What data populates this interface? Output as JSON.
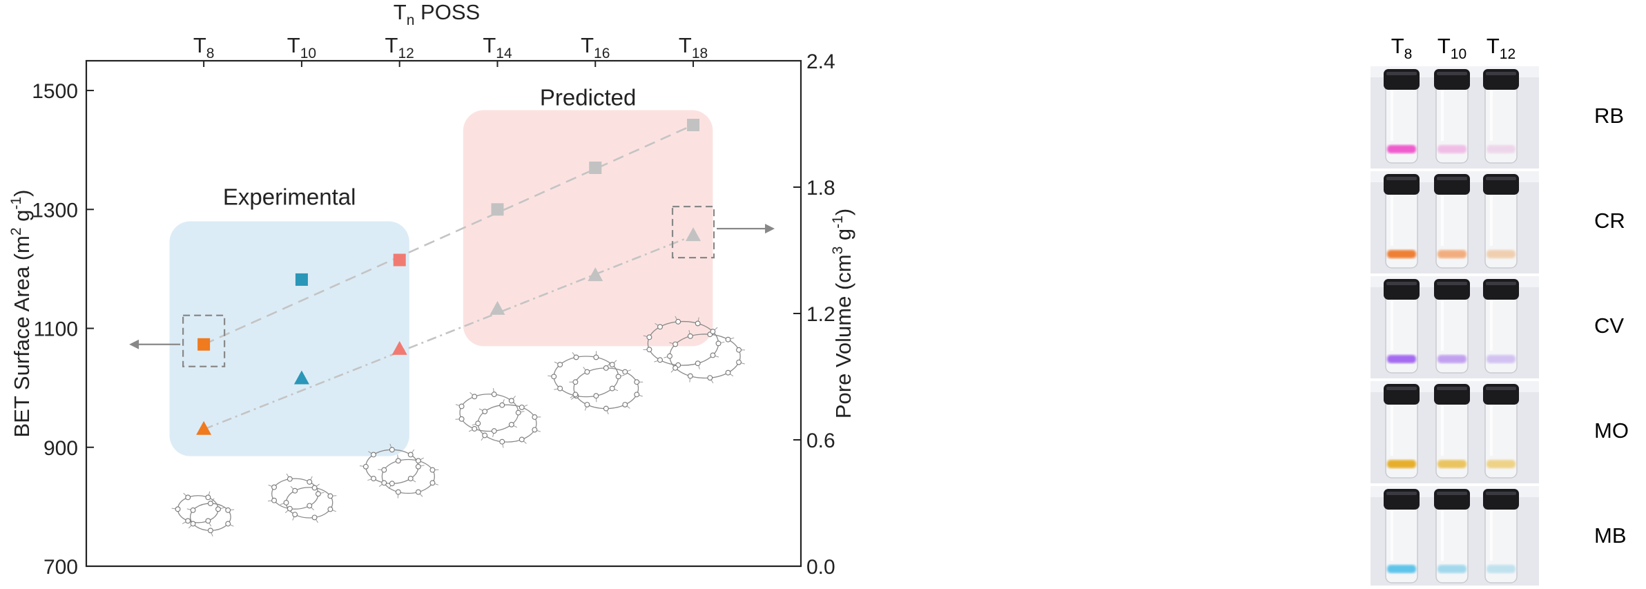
{
  "chart_data": {
    "type": "scatter",
    "top_axis": {
      "title_main": "T",
      "title_sub": "n",
      "title_rest": " POSS",
      "ticks": [
        {
          "main": "T",
          "sub": "8"
        },
        {
          "main": "T",
          "sub": "10"
        },
        {
          "main": "T",
          "sub": "12"
        },
        {
          "main": "T",
          "sub": "14"
        },
        {
          "main": "T",
          "sub": "16"
        },
        {
          "main": "T",
          "sub": "18"
        }
      ]
    },
    "x": [
      8,
      10,
      12,
      14,
      16,
      18
    ],
    "xlim": [
      5.6,
      20.2
    ],
    "left_axis": {
      "label": "BET Surface Area (m² g⁻¹)",
      "label_main": "BET Surface Area (m",
      "label_sup1": "2",
      "label_mid": " g",
      "label_sup2": "-1",
      "label_end": ")",
      "ylim": [
        700,
        1550
      ],
      "ticks": [
        "700",
        "900",
        "1100",
        "1300",
        "1500"
      ],
      "tick_values": [
        700,
        900,
        1100,
        1300,
        1500
      ]
    },
    "right_axis": {
      "label": "Pore Volume (cm³ g⁻¹)",
      "label_main": "Pore Volume (cm",
      "label_sup1": "3",
      "label_mid": " g",
      "label_sup2": "-1",
      "label_end": ")",
      "ylim": [
        0.0,
        2.4
      ],
      "ticks": [
        "0.0",
        "0.6",
        "1.2",
        "1.8",
        "2.4"
      ],
      "tick_values": [
        0.0,
        0.6,
        1.2,
        1.8,
        2.4
      ]
    },
    "series": [
      {
        "name": "BET Surface Area",
        "marker": "square",
        "axis": "left",
        "points": [
          {
            "x": 8,
            "y": 1073,
            "color": "#f07a1e",
            "group": "experimental"
          },
          {
            "x": 10,
            "y": 1182,
            "color": "#2a96b8",
            "group": "experimental"
          },
          {
            "x": 12,
            "y": 1215,
            "color": "#f07a72",
            "group": "experimental"
          },
          {
            "x": 14,
            "y": 1300,
            "color": "#c2c2c2",
            "group": "predicted"
          },
          {
            "x": 16,
            "y": 1370,
            "color": "#c2c2c2",
            "group": "predicted"
          },
          {
            "x": 18,
            "y": 1442,
            "color": "#c2c2c2",
            "group": "predicted"
          }
        ],
        "fit": {
          "x0": 8,
          "y0": 1073,
          "x1": 18,
          "y1": 1442,
          "style": "dashed"
        }
      },
      {
        "name": "Pore Volume",
        "marker": "triangle",
        "axis": "right",
        "points": [
          {
            "x": 8,
            "y": 0.65,
            "color": "#f07a1e",
            "group": "experimental"
          },
          {
            "x": 10,
            "y": 0.89,
            "color": "#2a96b8",
            "group": "experimental"
          },
          {
            "x": 12,
            "y": 1.03,
            "color": "#f07a72",
            "group": "experimental"
          },
          {
            "x": 14,
            "y": 1.22,
            "color": "#c2c2c2",
            "group": "predicted"
          },
          {
            "x": 16,
            "y": 1.38,
            "color": "#c2c2c2",
            "group": "predicted"
          },
          {
            "x": 18,
            "y": 1.57,
            "color": "#c2c2c2",
            "group": "predicted"
          }
        ],
        "fit": {
          "x0": 8,
          "y0": 0.65,
          "x1": 18,
          "y1": 1.57,
          "style": "dash-dot"
        }
      }
    ],
    "regions": [
      {
        "label": "Experimental",
        "color": "#dcecf6",
        "x0": 7.3,
        "x1": 12.2,
        "y0": 885,
        "y1": 1280
      },
      {
        "label": "Predicted",
        "color": "#fbe2e0",
        "x0": 13.3,
        "x1": 18.4,
        "y0": 1070,
        "y1": 1467
      }
    ],
    "annotations": [
      {
        "type": "dashed-box-arrow",
        "target": "T8 square",
        "points_to": "left axis",
        "x": 8,
        "y": 1073,
        "axis": "left"
      },
      {
        "type": "dashed-box-arrow",
        "target": "T18 triangle",
        "points_to": "right axis",
        "x": 18,
        "y": 1.57,
        "axis": "right"
      }
    ],
    "molecule_illustrations": [
      {
        "x": 8,
        "y": 790
      },
      {
        "x": 10,
        "y": 815
      },
      {
        "x": 12,
        "y": 860
      },
      {
        "x": 14,
        "y": 950
      },
      {
        "x": 16,
        "y": 1010
      },
      {
        "x": 18,
        "y": 1065
      }
    ]
  },
  "vial_panel": {
    "columns": [
      {
        "main": "T",
        "sub": "8"
      },
      {
        "main": "T",
        "sub": "10"
      },
      {
        "main": "T",
        "sub": "12"
      }
    ],
    "rows": [
      {
        "label": "RB",
        "liquid_colors": [
          "#ee5ccd",
          "#f0bde6",
          "#eed6ea"
        ]
      },
      {
        "label": "CR",
        "liquid_colors": [
          "#ee7f35",
          "#f2ad7e",
          "#f0cfb0"
        ]
      },
      {
        "label": "CV",
        "liquid_colors": [
          "#a46af0",
          "#c2a0f0",
          "#d2c2f2"
        ]
      },
      {
        "label": "MO",
        "liquid_colors": [
          "#e6ae2c",
          "#eac45e",
          "#eed286"
        ]
      },
      {
        "label": "MB",
        "liquid_colors": [
          "#5ec4ea",
          "#a2d8ec",
          "#bfe2ee"
        ]
      }
    ]
  }
}
